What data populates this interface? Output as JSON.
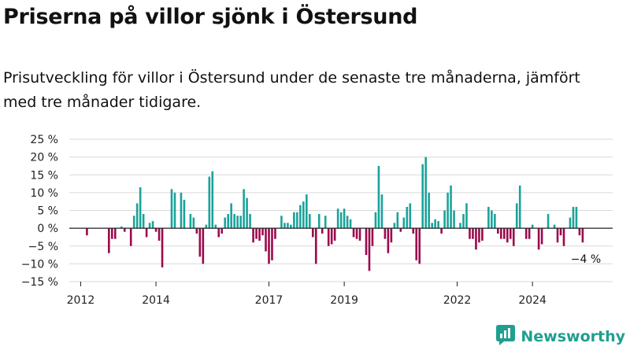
{
  "header": {
    "title": "Priserna på villor sjönk i Östersund",
    "subtitle": "Prisutveckling för villor i Östersund under de senaste tre månaderna, jämfört med tre månader tidigare."
  },
  "brand": {
    "name": "Newsworthy",
    "logo_icon": "bar-chart-logo-icon"
  },
  "colors": {
    "positive": "#1aa39b",
    "negative": "#9b0a4d",
    "grid": "#d9d9d9",
    "axis": "#222222"
  },
  "chart_data": {
    "type": "bar",
    "title": "Priserna på villor sjönk i Östersund",
    "xlabel": "",
    "ylabel": "",
    "ylim": [
      -15,
      25
    ],
    "yticks": [
      -15,
      -10,
      -5,
      0,
      5,
      10,
      15,
      20,
      25
    ],
    "ytick_labels": [
      "−15 %",
      "−10 %",
      "−5 %",
      "0 %",
      "5 %",
      "10 %",
      "15 %",
      "20 %",
      "25 %"
    ],
    "xticks": [
      "2012",
      "2014",
      "2017",
      "2019",
      "2022",
      "2024"
    ],
    "grid": true,
    "end_label": "−4 %",
    "start": "2011-10",
    "frequency": "monthly",
    "values": [
      0,
      0,
      0,
      0,
      0,
      -2,
      0,
      0,
      0,
      0,
      0,
      0,
      -7,
      -3,
      -3,
      0,
      0.5,
      -1,
      0,
      -5,
      3.5,
      7,
      11.5,
      4,
      -2.5,
      1.5,
      2,
      -1,
      -3.5,
      -11,
      0,
      0,
      11,
      10,
      0,
      10,
      8,
      0,
      4,
      3,
      -1.5,
      -8,
      -10,
      1,
      14.5,
      16,
      1,
      -2.5,
      -1.5,
      3,
      4,
      7,
      4,
      3.5,
      3.5,
      11,
      8.5,
      4,
      -4,
      -3,
      -3.5,
      -2,
      -6.5,
      -10,
      -9,
      -3,
      0,
      3.5,
      1.5,
      1.5,
      1,
      4.5,
      4.5,
      6.5,
      7.5,
      9.5,
      4,
      -2.5,
      -10,
      4,
      -1.5,
      3.5,
      -5,
      -4.5,
      -3.5,
      5.5,
      4.5,
      5.5,
      3.5,
      2.5,
      -2.5,
      -3,
      -3.5,
      0,
      -7.5,
      -12,
      -5,
      4.5,
      17.5,
      9.5,
      -3,
      -7,
      -4,
      1.5,
      4.5,
      -1,
      3,
      6,
      7,
      -1.5,
      -9,
      -10,
      18,
      20,
      10,
      1.5,
      2.5,
      2,
      -1.5,
      5,
      10,
      12,
      5,
      0,
      1.5,
      4,
      7,
      -3,
      -3,
      -6,
      -4,
      -3.5,
      0,
      6,
      5,
      4,
      -1.5,
      -3,
      -3,
      -4,
      -3,
      -5,
      7,
      12,
      0,
      -3,
      -3,
      1,
      0,
      -6,
      -4.5,
      0,
      4,
      0,
      1,
      -4,
      -2,
      -5,
      0,
      3,
      6,
      6,
      -2,
      -4
    ]
  }
}
